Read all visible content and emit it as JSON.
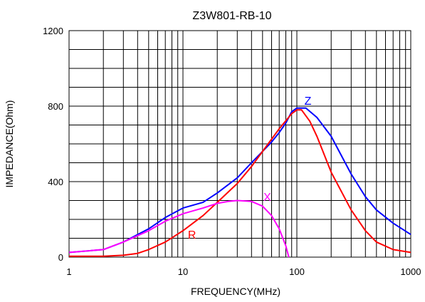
{
  "chart_data": {
    "type": "line",
    "title": "Z3W801-RB-10",
    "xlabel": "FREQUENCY(MHz)",
    "ylabel": "IMPEDANCE(Ohm)",
    "x_scale": "log",
    "xlim": [
      1,
      1000
    ],
    "ylim": [
      0,
      1200
    ],
    "grid": true,
    "x_ticks": [
      1,
      10,
      100,
      1000
    ],
    "x_tick_labels": [
      "1",
      "10",
      "100",
      "1000"
    ],
    "y_ticks": [
      0,
      400,
      800,
      1200
    ],
    "y_tick_labels": [
      "0",
      "400",
      "800",
      "1200"
    ],
    "series": [
      {
        "name": "Z",
        "color": "#0000ff",
        "points": [
          [
            1,
            25
          ],
          [
            2,
            40
          ],
          [
            3,
            80
          ],
          [
            5,
            150
          ],
          [
            7,
            210
          ],
          [
            10,
            260
          ],
          [
            15,
            290
          ],
          [
            20,
            340
          ],
          [
            30,
            420
          ],
          [
            40,
            500
          ],
          [
            50,
            560
          ],
          [
            60,
            610
          ],
          [
            70,
            660
          ],
          [
            80,
            710
          ],
          [
            90,
            770
          ],
          [
            100,
            790
          ],
          [
            120,
            790
          ],
          [
            150,
            740
          ],
          [
            200,
            640
          ],
          [
            300,
            440
          ],
          [
            400,
            320
          ],
          [
            500,
            250
          ],
          [
            700,
            180
          ],
          [
            1000,
            120
          ]
        ]
      },
      {
        "name": "R",
        "color": "#ff0000",
        "points": [
          [
            1,
            5
          ],
          [
            2,
            5
          ],
          [
            3,
            10
          ],
          [
            4,
            20
          ],
          [
            5,
            40
          ],
          [
            7,
            80
          ],
          [
            10,
            140
          ],
          [
            15,
            220
          ],
          [
            20,
            290
          ],
          [
            30,
            390
          ],
          [
            40,
            480
          ],
          [
            50,
            560
          ],
          [
            70,
            680
          ],
          [
            90,
            760
          ],
          [
            100,
            780
          ],
          [
            110,
            780
          ],
          [
            130,
            720
          ],
          [
            150,
            640
          ],
          [
            200,
            450
          ],
          [
            300,
            250
          ],
          [
            400,
            140
          ],
          [
            500,
            80
          ],
          [
            700,
            40
          ],
          [
            1000,
            25
          ]
        ]
      },
      {
        "name": "X",
        "color": "#ff00ff",
        "points": [
          [
            1,
            25
          ],
          [
            2,
            40
          ],
          [
            3,
            80
          ],
          [
            5,
            140
          ],
          [
            7,
            190
          ],
          [
            10,
            230
          ],
          [
            15,
            260
          ],
          [
            20,
            285
          ],
          [
            25,
            295
          ],
          [
            30,
            300
          ],
          [
            40,
            295
          ],
          [
            50,
            270
          ],
          [
            60,
            220
          ],
          [
            70,
            150
          ],
          [
            80,
            60
          ],
          [
            85,
            0
          ]
        ]
      }
    ]
  }
}
